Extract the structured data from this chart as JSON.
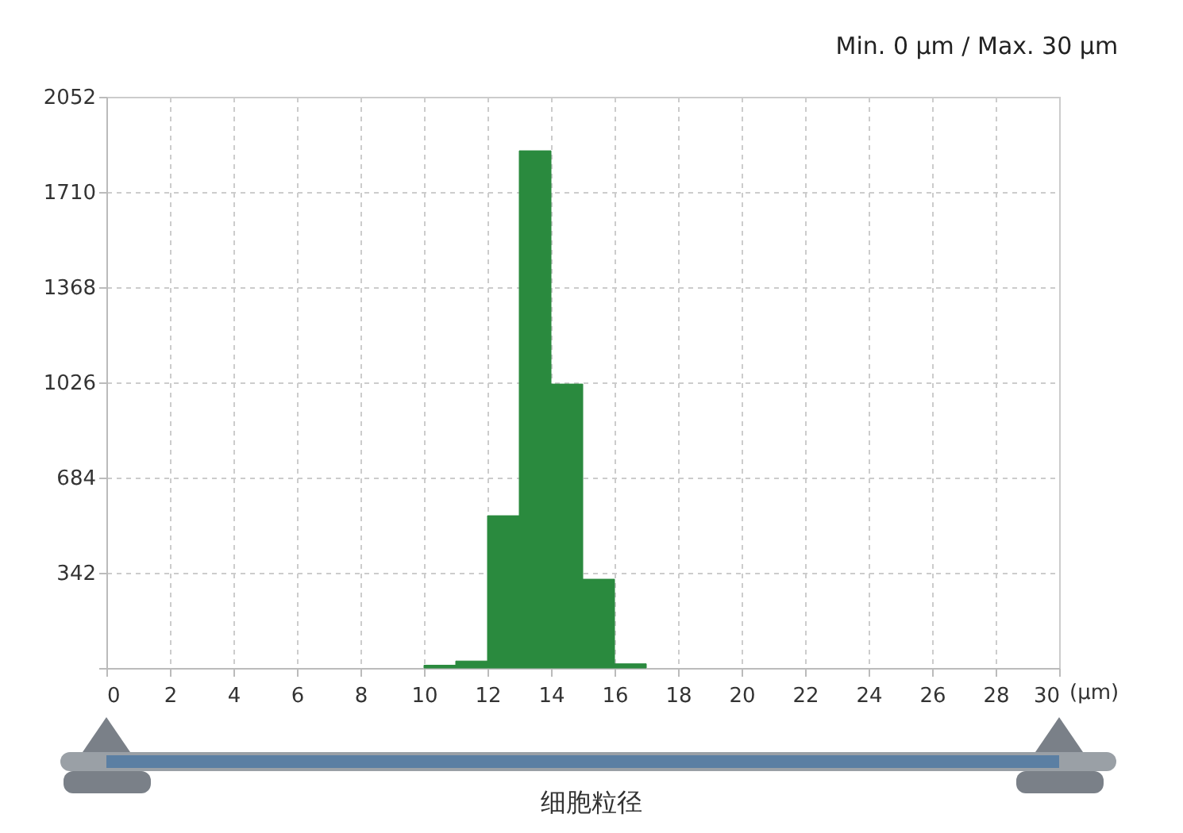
{
  "chart_data": {
    "type": "histogram",
    "title": "Min. 0 µm  /  Max. 30 µm",
    "xlabel": "(µm)",
    "annotations": [
      "细胞粒径"
    ],
    "bins": [
      10,
      11,
      12,
      13,
      14,
      15,
      16,
      17
    ],
    "values": [
      10,
      25,
      547,
      1858,
      1020,
      319,
      15
    ],
    "color": "#2a8a3e",
    "xlim": [
      0,
      30
    ],
    "xticks": [
      0,
      2,
      4,
      6,
      8,
      10,
      12,
      14,
      16,
      18,
      20,
      22,
      24,
      26,
      28,
      30
    ],
    "ylim": [
      0,
      2052
    ],
    "yticks": [
      {
        "value": 0,
        "label": null
      },
      342,
      684,
      1026,
      1368,
      1710,
      2052
    ],
    "grid": true
  }
}
